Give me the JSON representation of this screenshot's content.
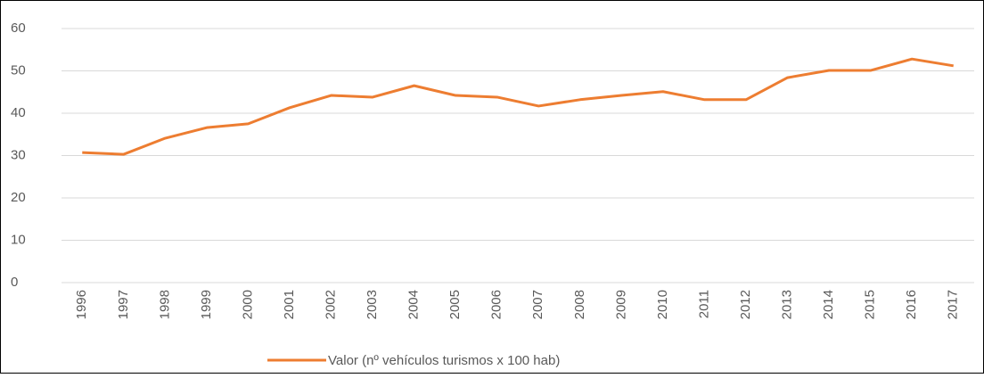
{
  "chart_data": {
    "type": "line",
    "categories": [
      "1996",
      "1997",
      "1998",
      "1999",
      "2000",
      "2001",
      "2002",
      "2003",
      "2004",
      "2005",
      "2006",
      "2007",
      "2008",
      "2009",
      "2010",
      "2011",
      "2012",
      "2013",
      "2014",
      "2015",
      "2016",
      "2017"
    ],
    "series": [
      {
        "name": "Valor  (nº vehículos turismos x 100 hab)",
        "color": "#ed7d31",
        "values": [
          30.7,
          30.3,
          34.1,
          36.6,
          37.5,
          41.3,
          44.2,
          43.8,
          46.5,
          44.2,
          43.8,
          41.7,
          43.2,
          44.2,
          45.1,
          43.2,
          43.2,
          48.4,
          50.1,
          50.1,
          52.8,
          51.2
        ]
      }
    ],
    "ylim": [
      0,
      60
    ],
    "yticks": [
      0,
      10,
      20,
      30,
      40,
      50,
      60
    ],
    "grid": true,
    "legend": "bottom"
  }
}
